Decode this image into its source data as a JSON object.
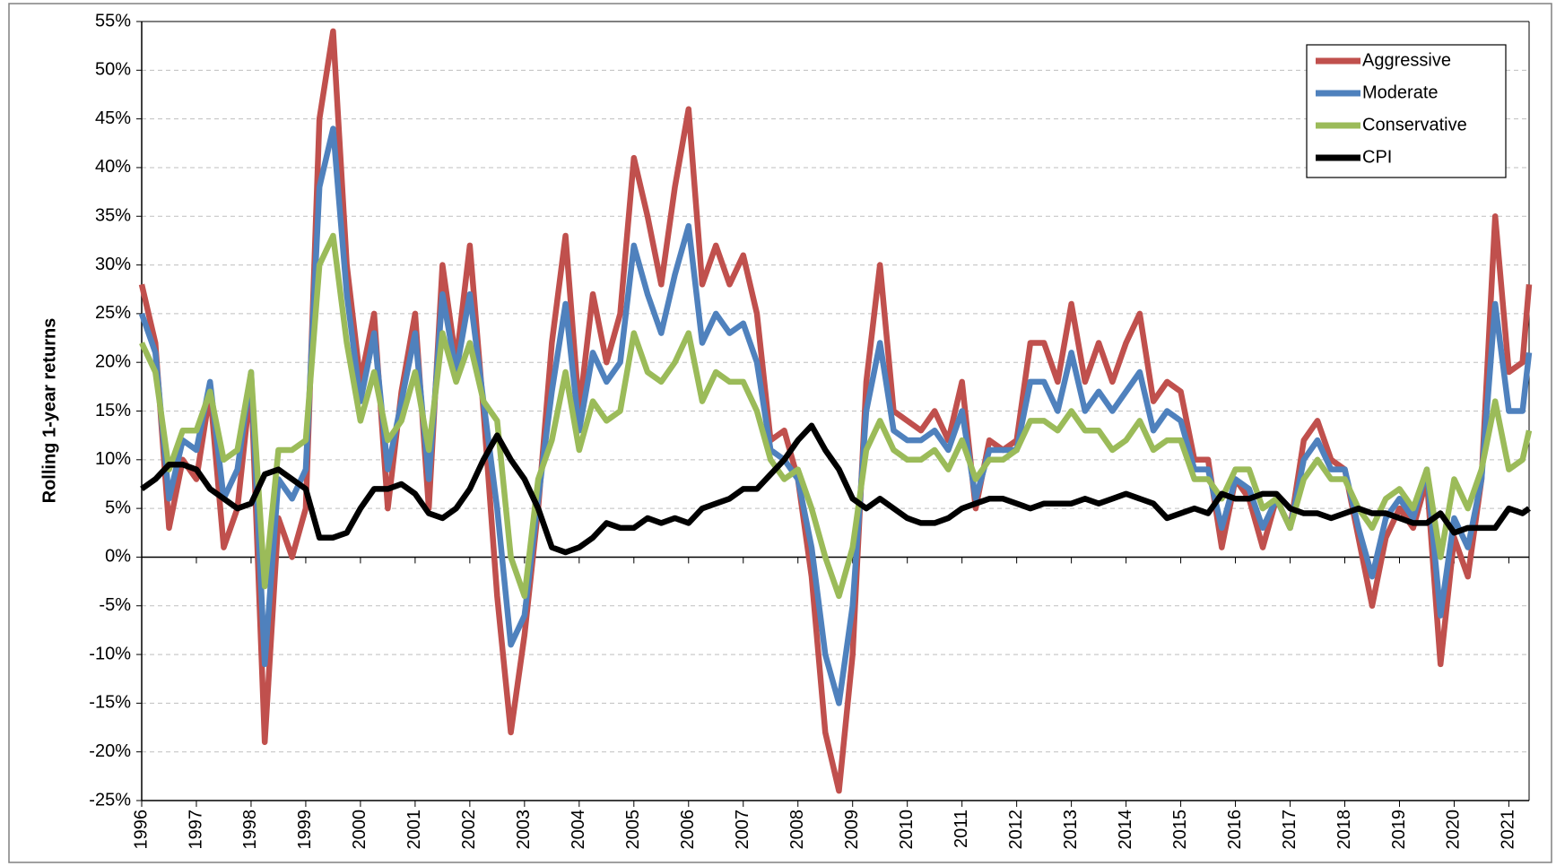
{
  "chart_data": {
    "type": "line",
    "y_label": "Rolling 1-year returns",
    "x": [
      1996,
      1996.25,
      1996.5,
      1996.75,
      1997,
      1997.25,
      1997.5,
      1997.75,
      1998,
      1998.25,
      1998.5,
      1998.75,
      1999,
      1999.25,
      1999.5,
      1999.75,
      2000,
      2000.25,
      2000.5,
      2000.75,
      2001,
      2001.25,
      2001.5,
      2001.75,
      2002,
      2002.25,
      2002.5,
      2002.75,
      2003,
      2003.25,
      2003.5,
      2003.75,
      2004,
      2004.25,
      2004.5,
      2004.75,
      2005,
      2005.25,
      2005.5,
      2005.75,
      2006,
      2006.25,
      2006.5,
      2006.75,
      2007,
      2007.25,
      2007.5,
      2007.75,
      2008,
      2008.25,
      2008.5,
      2008.75,
      2009,
      2009.25,
      2009.5,
      2009.75,
      2010,
      2010.25,
      2010.5,
      2010.75,
      2011,
      2011.25,
      2011.5,
      2011.75,
      2012,
      2012.25,
      2012.5,
      2012.75,
      2013,
      2013.25,
      2013.5,
      2013.75,
      2014,
      2014.25,
      2014.5,
      2014.75,
      2015,
      2015.25,
      2015.5,
      2015.75,
      2016,
      2016.25,
      2016.5,
      2016.75,
      2017,
      2017.25,
      2017.5,
      2017.75,
      2018,
      2018.25,
      2018.5,
      2018.75,
      2019,
      2019.25,
      2019.5,
      2019.75,
      2020,
      2020.25,
      2020.5,
      2020.75,
      2021,
      2021.25,
      2021.37
    ],
    "series": [
      {
        "name": "Aggressive",
        "color": "#c0504d",
        "values": [
          28,
          22,
          3,
          10,
          8,
          17,
          1,
          5,
          18,
          -19,
          4,
          0,
          5,
          45,
          54,
          30,
          18,
          25,
          5,
          17,
          25,
          5,
          30,
          20,
          32,
          15,
          -4,
          -18,
          -8,
          5,
          22,
          33,
          15,
          27,
          20,
          25,
          41,
          35,
          28,
          38,
          46,
          28,
          32,
          28,
          31,
          25,
          12,
          13,
          8,
          -2,
          -18,
          -24,
          -10,
          18,
          30,
          15,
          14,
          13,
          15,
          12,
          18,
          5,
          12,
          11,
          12,
          22,
          22,
          18,
          26,
          18,
          22,
          18,
          22,
          25,
          16,
          18,
          17,
          10,
          10,
          1,
          8,
          6,
          1,
          6,
          3,
          12,
          14,
          10,
          9,
          2,
          -5,
          2,
          5,
          3,
          8,
          -11,
          2,
          -2,
          8,
          35,
          19,
          20,
          28
        ]
      },
      {
        "name": "Moderate",
        "color": "#4f81bd",
        "values": [
          25,
          21,
          6,
          12,
          11,
          18,
          6,
          9,
          19,
          -11,
          8,
          6,
          9,
          38,
          44,
          27,
          16,
          23,
          9,
          16,
          23,
          8,
          27,
          19,
          27,
          16,
          5,
          -9,
          -6,
          6,
          17,
          26,
          13,
          21,
          18,
          20,
          32,
          27,
          23,
          29,
          34,
          22,
          25,
          23,
          24,
          20,
          11,
          10,
          8,
          1,
          -10,
          -15,
          -5,
          15,
          22,
          13,
          12,
          12,
          13,
          11,
          15,
          6,
          11,
          11,
          11,
          18,
          18,
          15,
          21,
          15,
          17,
          15,
          17,
          19,
          13,
          15,
          14,
          9,
          9,
          3,
          8,
          7,
          3,
          6,
          3,
          10,
          12,
          9,
          9,
          3,
          -2,
          4,
          6,
          4,
          9,
          -6,
          4,
          1,
          8,
          26,
          15,
          15,
          21
        ]
      },
      {
        "name": "Conservative",
        "color": "#9bbb59",
        "values": [
          22,
          19,
          9,
          13,
          13,
          17,
          10,
          11,
          19,
          -3,
          11,
          11,
          12,
          30,
          33,
          22,
          14,
          19,
          12,
          14,
          19,
          11,
          23,
          18,
          22,
          16,
          14,
          0,
          -4,
          8,
          12,
          19,
          11,
          16,
          14,
          15,
          23,
          19,
          18,
          20,
          23,
          16,
          19,
          18,
          18,
          15,
          10,
          8,
          9,
          5,
          0,
          -4,
          1,
          11,
          14,
          11,
          10,
          10,
          11,
          9,
          12,
          8,
          10,
          10,
          11,
          14,
          14,
          13,
          15,
          13,
          13,
          11,
          12,
          14,
          11,
          12,
          12,
          8,
          8,
          6,
          9,
          9,
          5,
          6,
          3,
          8,
          10,
          8,
          8,
          5,
          3,
          6,
          7,
          5,
          9,
          0,
          8,
          5,
          9,
          16,
          9,
          10,
          13
        ]
      },
      {
        "name": "CPI",
        "color": "#000000",
        "values": [
          7,
          8,
          9.5,
          9.5,
          9,
          7,
          6,
          5,
          5.5,
          8.5,
          9,
          8,
          7,
          2,
          2,
          2.5,
          5,
          7,
          7,
          7.5,
          6.5,
          4.5,
          4,
          5,
          7,
          10,
          12.5,
          10,
          8,
          5,
          1,
          0.5,
          1,
          2,
          3.5,
          3,
          3,
          4,
          3.5,
          4,
          3.5,
          5,
          5.5,
          6,
          7,
          7,
          8.5,
          10,
          12,
          13.5,
          11,
          9,
          6,
          5,
          6,
          5,
          4,
          3.5,
          3.5,
          4,
          5,
          5.5,
          6,
          6,
          5.5,
          5,
          5.5,
          5.5,
          5.5,
          6,
          5.5,
          6,
          6.5,
          6,
          5.5,
          4,
          4.5,
          5,
          4.5,
          6.5,
          6,
          6,
          6.5,
          6.5,
          5,
          4.5,
          4.5,
          4,
          4.5,
          5,
          4.5,
          4.5,
          4,
          3.5,
          3.5,
          4.5,
          2.5,
          3,
          3,
          3,
          5,
          4.5,
          5
        ]
      }
    ],
    "xlim": [
      1996,
      2021.37
    ],
    "xticks": [
      1996,
      1997,
      1998,
      1999,
      2000,
      2001,
      2002,
      2003,
      2004,
      2005,
      2006,
      2007,
      2008,
      2009,
      2010,
      2011,
      2012,
      2013,
      2014,
      2015,
      2016,
      2017,
      2018,
      2019,
      2020,
      2021
    ],
    "ylim": [
      -25,
      55
    ],
    "yticks": [
      {
        "value": -25,
        "label": "-25%"
      },
      {
        "value": -20,
        "label": "-20%"
      },
      {
        "value": -15,
        "label": "-15%"
      },
      {
        "value": -10,
        "label": "-10%"
      },
      {
        "value": -5,
        "label": "-5%"
      },
      {
        "value": 0,
        "label": "0%"
      },
      {
        "value": 5,
        "label": "5%"
      },
      {
        "value": 10,
        "label": "10%"
      },
      {
        "value": 15,
        "label": "15%"
      },
      {
        "value": 20,
        "label": "20%"
      },
      {
        "value": 25,
        "label": "25%"
      },
      {
        "value": 30,
        "label": "30%"
      },
      {
        "value": 35,
        "label": "35%"
      },
      {
        "value": 40,
        "label": "40%"
      },
      {
        "value": 45,
        "label": "45%"
      },
      {
        "value": 50,
        "label": "50%"
      },
      {
        "value": 55,
        "label": "55%"
      }
    ],
    "grid": true,
    "legend": "upper right"
  }
}
